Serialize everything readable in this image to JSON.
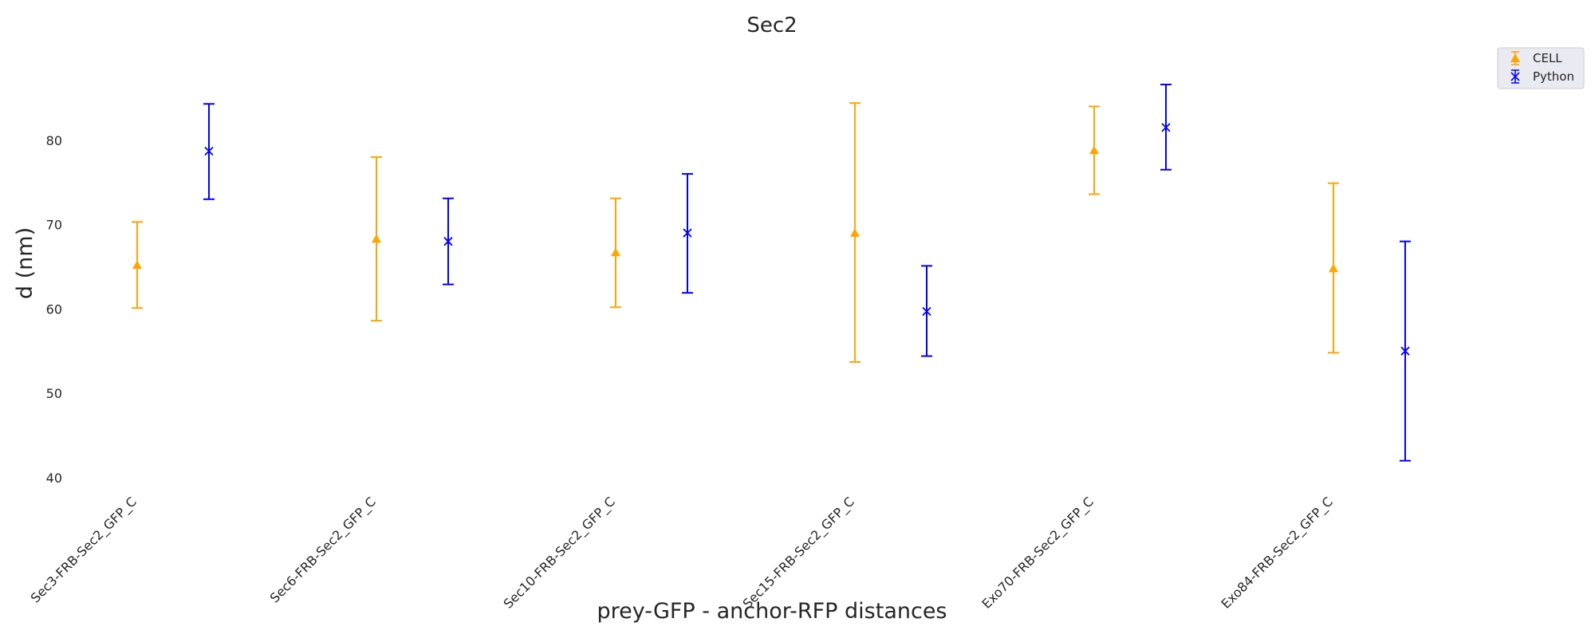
{
  "chart_data": {
    "type": "errorbar",
    "title": "Sec2",
    "xlabel": "prey-GFP - anchor-RFP distances",
    "ylabel": "d (nm)",
    "ylim": [
      38,
      90
    ],
    "yticks": [
      40,
      50,
      60,
      70,
      80
    ],
    "grid": false,
    "legend_position": "top-right",
    "categories": [
      "Sec3-FRB-Sec2_GFP_C",
      "Sec6-FRB-Sec2_GFP_C",
      "Sec10-FRB-Sec2_GFP_C",
      "Sec15-FRB-Sec2_GFP_C",
      "Exo70-FRB-Sec2_GFP_C",
      "Exo84-FRB-Sec2_GFP_C"
    ],
    "series": [
      {
        "name": "CELL",
        "color": "#FFA500",
        "marker": "triangle",
        "values": [
          65.2,
          68.3,
          66.7,
          69.0,
          78.8,
          64.8
        ],
        "lower": [
          60.1,
          58.6,
          60.2,
          53.7,
          73.6,
          54.8
        ],
        "upper": [
          70.3,
          78.0,
          73.1,
          84.4,
          84.0,
          74.9
        ]
      },
      {
        "name": "Python",
        "color": "#0000FF",
        "marker": "x",
        "values": [
          78.7,
          68.0,
          69.0,
          59.7,
          81.5,
          55.0
        ],
        "lower": [
          73.0,
          62.9,
          61.9,
          54.4,
          76.5,
          42.0
        ],
        "upper": [
          84.3,
          73.1,
          76.0,
          65.1,
          86.6,
          68.0
        ]
      }
    ]
  }
}
